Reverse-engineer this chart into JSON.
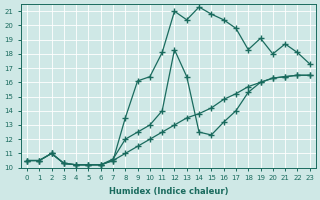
{
  "xlabel": "Humidex (Indice chaleur)",
  "bg_color": "#cfe8e6",
  "grid_color": "#ffffff",
  "line_color": "#1a6b5e",
  "xlim": [
    -0.5,
    23.5
  ],
  "ylim": [
    10,
    21.5
  ],
  "yticks": [
    10,
    11,
    12,
    13,
    14,
    15,
    16,
    17,
    18,
    19,
    20,
    21
  ],
  "xticks": [
    0,
    1,
    2,
    3,
    4,
    5,
    6,
    7,
    8,
    9,
    10,
    11,
    12,
    13,
    14,
    15,
    16,
    17,
    18,
    19,
    20,
    21,
    22,
    23
  ],
  "line1_x": [
    0,
    1,
    2,
    3,
    4,
    5,
    6,
    7,
    8,
    9,
    10,
    11,
    12,
    13,
    14,
    15,
    16,
    17,
    18,
    19,
    20,
    21,
    22,
    23
  ],
  "line1_y": [
    10.5,
    10.5,
    11.0,
    10.3,
    10.2,
    10.2,
    10.2,
    10.5,
    11.0,
    11.5,
    12.0,
    12.5,
    13.0,
    13.5,
    13.8,
    14.2,
    14.8,
    15.2,
    15.7,
    16.0,
    16.3,
    16.4,
    16.5,
    16.5
  ],
  "line2_x": [
    0,
    1,
    2,
    3,
    4,
    5,
    6,
    7,
    8,
    9,
    10,
    11,
    12,
    13,
    14,
    15,
    16,
    17,
    18,
    19,
    20,
    21,
    22,
    23
  ],
  "line2_y": [
    10.5,
    10.5,
    11.0,
    10.3,
    10.2,
    10.2,
    10.2,
    10.5,
    13.5,
    16.1,
    16.4,
    18.1,
    21.0,
    20.4,
    21.3,
    20.8,
    20.4,
    19.8,
    18.3,
    19.1,
    18.0,
    18.7,
    18.1,
    17.3
  ],
  "line3_x": [
    0,
    1,
    2,
    3,
    4,
    5,
    6,
    7,
    8,
    9,
    10,
    11,
    12,
    13,
    14,
    15,
    16,
    17,
    18,
    19,
    20,
    21,
    22,
    23
  ],
  "line3_y": [
    10.5,
    10.5,
    11.0,
    10.3,
    10.2,
    10.2,
    10.2,
    10.6,
    12.0,
    12.5,
    13.0,
    14.0,
    18.3,
    16.4,
    12.5,
    12.3,
    13.2,
    14.0,
    15.3,
    16.0,
    16.3,
    16.4,
    16.5,
    16.5
  ]
}
